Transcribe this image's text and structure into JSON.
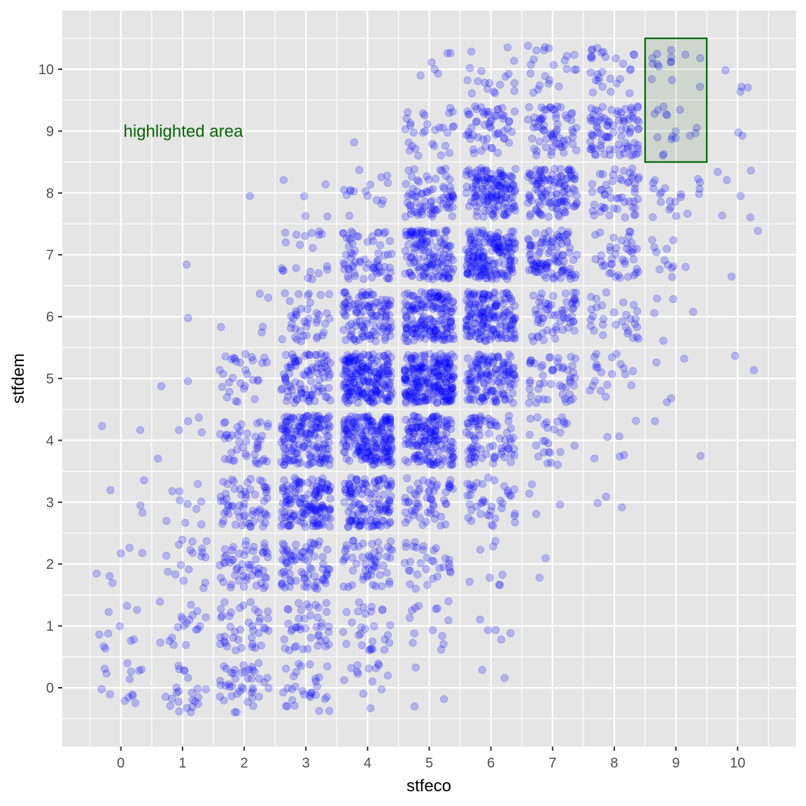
{
  "chart_data": {
    "type": "scatter",
    "title": "",
    "xlabel": "stfeco",
    "ylabel": "stfdem",
    "xlim": [
      -0.95,
      10.95
    ],
    "ylim": [
      -0.95,
      10.95
    ],
    "x_ticks": [
      0,
      1,
      2,
      3,
      4,
      5,
      6,
      7,
      8,
      9,
      10
    ],
    "y_ticks": [
      0,
      1,
      2,
      3,
      4,
      5,
      6,
      7,
      8,
      9,
      10
    ],
    "x_tick_labels": [
      "0",
      "1",
      "2",
      "3",
      "4",
      "5",
      "6",
      "7",
      "8",
      "9",
      "10"
    ],
    "y_tick_labels": [
      "0",
      "1",
      "2",
      "3",
      "4",
      "5",
      "6",
      "7",
      "8",
      "9",
      "10"
    ],
    "grid": true,
    "jitter": 0.4,
    "point_color": "#0000ff",
    "point_alpha": 0.22,
    "panel_background": "#e5e5e5",
    "grid_color": "#ffffff",
    "highlight": {
      "xmin": 8.5,
      "xmax": 9.5,
      "ymin": 8.5,
      "ymax": 10.5,
      "color": "#006400",
      "fill_alpha": 0.1
    },
    "annotation": {
      "text": "highlighted area",
      "x": 1,
      "y": 9,
      "color": "#006400"
    },
    "counts": [
      [
        14,
        23,
        42,
        30,
        14,
        3,
        2,
        0,
        0,
        0,
        0
      ],
      [
        10,
        19,
        40,
        42,
        28,
        14,
        5,
        0,
        0,
        0,
        0
      ],
      [
        6,
        18,
        55,
        75,
        55,
        32,
        8,
        2,
        0,
        0,
        0
      ],
      [
        4,
        10,
        62,
        140,
        120,
        58,
        40,
        4,
        3,
        0,
        0
      ],
      [
        2,
        5,
        42,
        150,
        190,
        150,
        75,
        26,
        6,
        2,
        0
      ],
      [
        0,
        2,
        30,
        90,
        200,
        230,
        130,
        50,
        20,
        4,
        2
      ],
      [
        0,
        1,
        5,
        40,
        110,
        170,
        160,
        60,
        30,
        5,
        0
      ],
      [
        0,
        1,
        0,
        20,
        65,
        130,
        170,
        100,
        40,
        12,
        2
      ],
      [
        0,
        0,
        1,
        5,
        16,
        75,
        140,
        110,
        50,
        20,
        6
      ],
      [
        0,
        0,
        0,
        0,
        1,
        30,
        55,
        65,
        85,
        16,
        2
      ],
      [
        0,
        0,
        0,
        0,
        0,
        6,
        18,
        22,
        28,
        14,
        4
      ]
    ]
  }
}
